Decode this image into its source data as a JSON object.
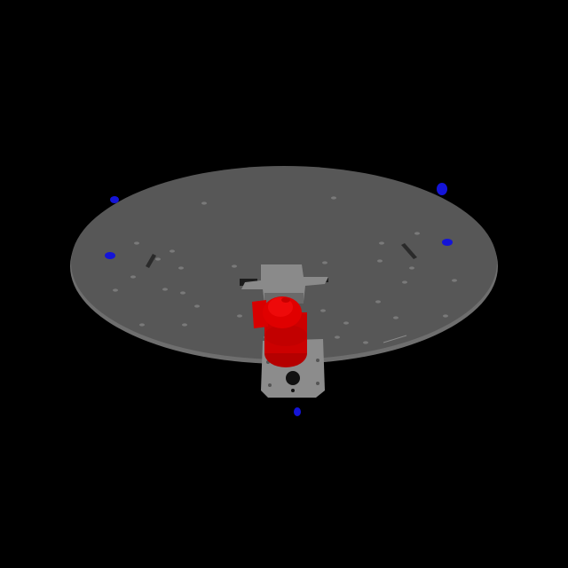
{
  "scene": {
    "background_color": "#000000",
    "platter_color": "#575757",
    "platter_rim_color": "#6e6e6e",
    "bracket_color": "#8a8a8a",
    "motor_color": "#d40000",
    "marker_color": "#1414d8",
    "hole_color": "#7a7a7a"
  }
}
